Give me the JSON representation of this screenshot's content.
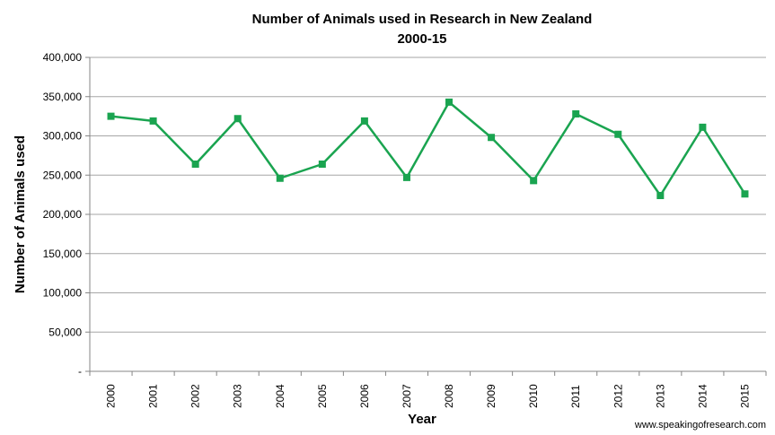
{
  "chart_data": {
    "type": "line",
    "title": "Number of Animals used in Research in New Zealand",
    "subtitle": "2000-15",
    "xlabel": "Year",
    "ylabel": "Number of Animals used",
    "categories": [
      "2000",
      "2001",
      "2002",
      "2003",
      "2004",
      "2005",
      "2006",
      "2007",
      "2008",
      "2009",
      "2010",
      "2011",
      "2012",
      "2013",
      "2014",
      "2015"
    ],
    "values": [
      325000,
      319000,
      264000,
      322000,
      246000,
      264000,
      319000,
      247000,
      343000,
      298000,
      243000,
      328000,
      302000,
      224000,
      311000,
      226000
    ],
    "ylim": [
      0,
      400000
    ],
    "yticks": [
      0,
      50000,
      100000,
      150000,
      200000,
      250000,
      300000,
      350000,
      400000
    ],
    "ytick_labels": [
      "-",
      "50,000",
      "100,000",
      "150,000",
      "200,000",
      "250,000",
      "300,000",
      "350,000",
      "400,000"
    ],
    "grid": true,
    "legend": "none",
    "line_color": "#1aa450",
    "marker": "square"
  },
  "footer": "www.speakingofresearch.com"
}
